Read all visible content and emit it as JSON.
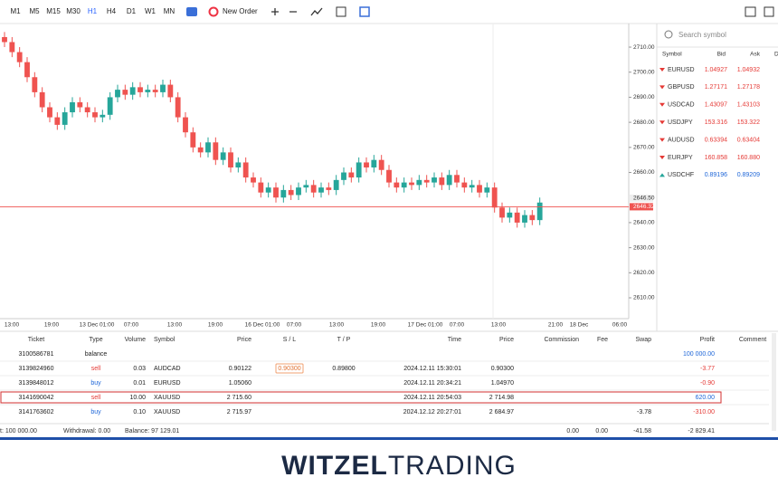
{
  "toolbar": {
    "timeframes": [
      "M1",
      "M5",
      "M15",
      "M30",
      "H1",
      "H4",
      "D1",
      "W1",
      "MN"
    ],
    "active": "H1",
    "new_order": "New Order"
  },
  "chart_data": {
    "type": "candlestick",
    "open": [
      2714,
      2712,
      2708,
      2704,
      2698,
      2692,
      2686,
      2682,
      2679,
      2684,
      2688,
      2686,
      2684,
      2682,
      2683,
      2690,
      2693,
      2691,
      2694,
      2692,
      2693,
      2692,
      2695,
      2690,
      2682,
      2676,
      2670,
      2668,
      2672,
      2665,
      2668,
      2662,
      2664,
      2658,
      2656,
      2652,
      2654,
      2650,
      2653,
      2651,
      2654,
      2655,
      2652,
      2654,
      2653,
      2657,
      2660,
      2658,
      2664,
      2662,
      2665,
      2661,
      2656,
      2654,
      2656,
      2655,
      2657,
      2656,
      2658,
      2655,
      2659,
      2656,
      2654,
      2655,
      2652,
      2654,
      2646,
      2642,
      2644,
      2640,
      2643,
      2641
    ],
    "high": [
      2716,
      2714,
      2710,
      2706,
      2700,
      2694,
      2688,
      2684,
      2686,
      2690,
      2690,
      2688,
      2686,
      2685,
      2692,
      2695,
      2695,
      2696,
      2696,
      2695,
      2695,
      2697,
      2697,
      2692,
      2684,
      2678,
      2672,
      2674,
      2674,
      2670,
      2670,
      2666,
      2666,
      2660,
      2658,
      2656,
      2656,
      2655,
      2655,
      2656,
      2657,
      2657,
      2656,
      2656,
      2659,
      2662,
      2662,
      2666,
      2666,
      2667,
      2667,
      2663,
      2658,
      2658,
      2658,
      2659,
      2659,
      2660,
      2660,
      2661,
      2661,
      2658,
      2657,
      2657,
      2656,
      2656,
      2648,
      2646,
      2646,
      2645,
      2645,
      2650
    ],
    "low": [
      2710,
      2706,
      2702,
      2696,
      2690,
      2684,
      2680,
      2677,
      2677,
      2682,
      2684,
      2682,
      2680,
      2680,
      2681,
      2688,
      2689,
      2689,
      2690,
      2690,
      2690,
      2690,
      2688,
      2680,
      2674,
      2668,
      2666,
      2666,
      2663,
      2663,
      2660,
      2660,
      2656,
      2654,
      2650,
      2650,
      2648,
      2648,
      2649,
      2649,
      2652,
      2650,
      2650,
      2651,
      2651,
      2655,
      2656,
      2656,
      2660,
      2660,
      2659,
      2654,
      2652,
      2652,
      2653,
      2653,
      2654,
      2654,
      2653,
      2653,
      2654,
      2652,
      2652,
      2650,
      2650,
      2644,
      2640,
      2640,
      2638,
      2638,
      2639,
      2639
    ],
    "close": [
      2712,
      2708,
      2704,
      2698,
      2692,
      2686,
      2682,
      2679,
      2684,
      2688,
      2686,
      2684,
      2682,
      2683,
      2690,
      2693,
      2691,
      2694,
      2692,
      2693,
      2692,
      2695,
      2690,
      2682,
      2676,
      2670,
      2668,
      2672,
      2665,
      2668,
      2662,
      2664,
      2658,
      2656,
      2652,
      2654,
      2650,
      2653,
      2651,
      2654,
      2655,
      2652,
      2654,
      2653,
      2657,
      2660,
      2658,
      2664,
      2662,
      2665,
      2661,
      2656,
      2654,
      2656,
      2655,
      2657,
      2656,
      2658,
      2655,
      2659,
      2656,
      2654,
      2655,
      2652,
      2654,
      2646,
      2642,
      2644,
      2640,
      2643,
      2641,
      2648
    ],
    "up_color": "#26a69a",
    "down_color": "#ef5350",
    "ylim": [
      2601.7,
      2719.4
    ],
    "yticks": [
      {
        "value": 2710,
        "label": "2710.00"
      },
      {
        "value": 2700,
        "label": "2700.00"
      },
      {
        "value": 2690,
        "label": "2690.00"
      },
      {
        "value": 2680,
        "label": "2680.00"
      },
      {
        "value": 2670,
        "label": "2670.00"
      },
      {
        "value": 2660,
        "label": "2660.00"
      },
      {
        "value": 2640,
        "label": "2640.00"
      },
      {
        "value": 2630,
        "label": "2630.00"
      },
      {
        "value": 2620,
        "label": "2620.00"
      },
      {
        "value": 2610,
        "label": "2610.00"
      }
    ],
    "ask_price": {
      "value": 2646.5,
      "label": "2646.50"
    },
    "bid_price": {
      "value": 2646.32,
      "label": "2646.32"
    },
    "x_labels": [
      "13:00",
      "19:00",
      "13 Dec 01:00",
      "07:00",
      "13:00",
      "19:00",
      "16 Dec 01:00",
      "07:00",
      "13:00",
      "19:00",
      "17 Dec 01:00",
      "07:00",
      "13:00",
      "21:00",
      "18 Dec",
      "06:00"
    ]
  },
  "watchlist": {
    "search": "Search symbol",
    "headers": [
      "Symbol",
      "Bid",
      "Ask",
      "Da"
    ],
    "rows": [
      {
        "symbol": "EURUSD",
        "bid": "1.04927",
        "ask": "1.04932",
        "dir": "down"
      },
      {
        "symbol": "GBPUSD",
        "bid": "1.27171",
        "ask": "1.27178",
        "dir": "down"
      },
      {
        "symbol": "USDCAD",
        "bid": "1.43097",
        "ask": "1.43103",
        "dir": "down"
      },
      {
        "symbol": "USDJPY",
        "bid": "153.316",
        "ask": "153.322",
        "dir": "down"
      },
      {
        "symbol": "AUDUSD",
        "bid": "0.63394",
        "ask": "0.63404",
        "dir": "down"
      },
      {
        "symbol": "EURJPY",
        "bid": "160.858",
        "ask": "160.880",
        "dir": "down"
      },
      {
        "symbol": "USDCHF",
        "bid": "0.89196",
        "ask": "0.89209",
        "dir": "up"
      }
    ]
  },
  "trades": {
    "headers": [
      "Ticket",
      "Type",
      "Volume",
      "Symbol",
      "Price",
      "S / L",
      "T / P",
      "Time",
      "Price",
      "Commission",
      "Fee",
      "Swap",
      "Profit",
      "Comment"
    ],
    "rows": [
      [
        "3100586781",
        "balance",
        null,
        null,
        null,
        null,
        null,
        null,
        null,
        null,
        null,
        null,
        "100 000.00",
        null
      ],
      [
        "3139824960",
        "sell",
        "0.03",
        "AUDCAD",
        "0.90122",
        "0.90300",
        "0.89800",
        "2024.12.11 15:30:01",
        "0.90300",
        null,
        null,
        null,
        "-3.77",
        null
      ],
      [
        "3139848012",
        "buy",
        "0.01",
        "EURUSD",
        "1.05060",
        null,
        null,
        "2024.12.11 20:34:21",
        "1.04970",
        null,
        null,
        null,
        "-0.90",
        null
      ],
      [
        "3141690042",
        "sell",
        "10.00",
        "XAUUSD",
        "2 715.60",
        null,
        null,
        "2024.12.11 20:54:03",
        "2 714.98",
        null,
        null,
        null,
        "620.00",
        null
      ],
      [
        "3141763602",
        "buy",
        "0.10",
        "XAUUSD",
        "2 715.97",
        null,
        null,
        "2024.12.12 20:27:01",
        "2 684.97",
        null,
        null,
        "-3.78",
        "-310.00",
        null
      ]
    ],
    "highlight_row": 3
  },
  "footer": {
    "deposit": "t: 100 000.00",
    "withdrawal": "Withdrawal: 0.00",
    "balance": "Balance: 97 129.01",
    "commission": "0.00",
    "fee": "0.00",
    "swap": "-41.58",
    "profit": "-2 829.41"
  },
  "logo": {
    "bold": "WITZEL",
    "light": "TRADING"
  }
}
